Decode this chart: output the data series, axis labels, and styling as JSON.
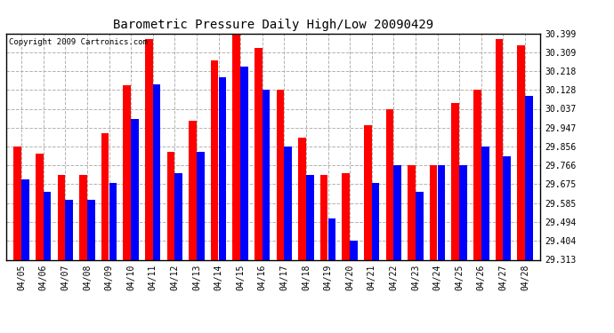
{
  "title": "Barometric Pressure Daily High/Low 20090429",
  "copyright": "Copyright 2009 Cartronics.com",
  "background_color": "#ffffff",
  "bar_color_high": "#ff0000",
  "bar_color_low": "#0000ff",
  "ylim": [
    29.313,
    30.399
  ],
  "yticks": [
    29.313,
    29.404,
    29.494,
    29.585,
    29.675,
    29.766,
    29.856,
    29.947,
    30.037,
    30.128,
    30.218,
    30.309,
    30.399
  ],
  "dates": [
    "04/05",
    "04/06",
    "04/07",
    "04/08",
    "04/09",
    "04/10",
    "04/11",
    "04/12",
    "04/13",
    "04/14",
    "04/15",
    "04/16",
    "04/17",
    "04/18",
    "04/19",
    "04/20",
    "04/21",
    "04/22",
    "04/23",
    "04/24",
    "04/25",
    "04/26",
    "04/27",
    "04/28"
  ],
  "highs": [
    29.856,
    29.82,
    29.72,
    29.72,
    29.92,
    30.15,
    30.37,
    29.83,
    29.98,
    30.27,
    30.399,
    30.33,
    30.128,
    29.9,
    29.72,
    29.73,
    29.96,
    30.037,
    29.766,
    29.766,
    30.065,
    30.128,
    30.37,
    30.34
  ],
  "lows": [
    29.7,
    29.64,
    29.6,
    29.6,
    29.68,
    29.99,
    30.155,
    29.73,
    29.83,
    30.19,
    30.24,
    30.128,
    29.856,
    29.72,
    29.51,
    29.404,
    29.68,
    29.766,
    29.64,
    29.766,
    29.766,
    29.856,
    29.81,
    30.1
  ]
}
